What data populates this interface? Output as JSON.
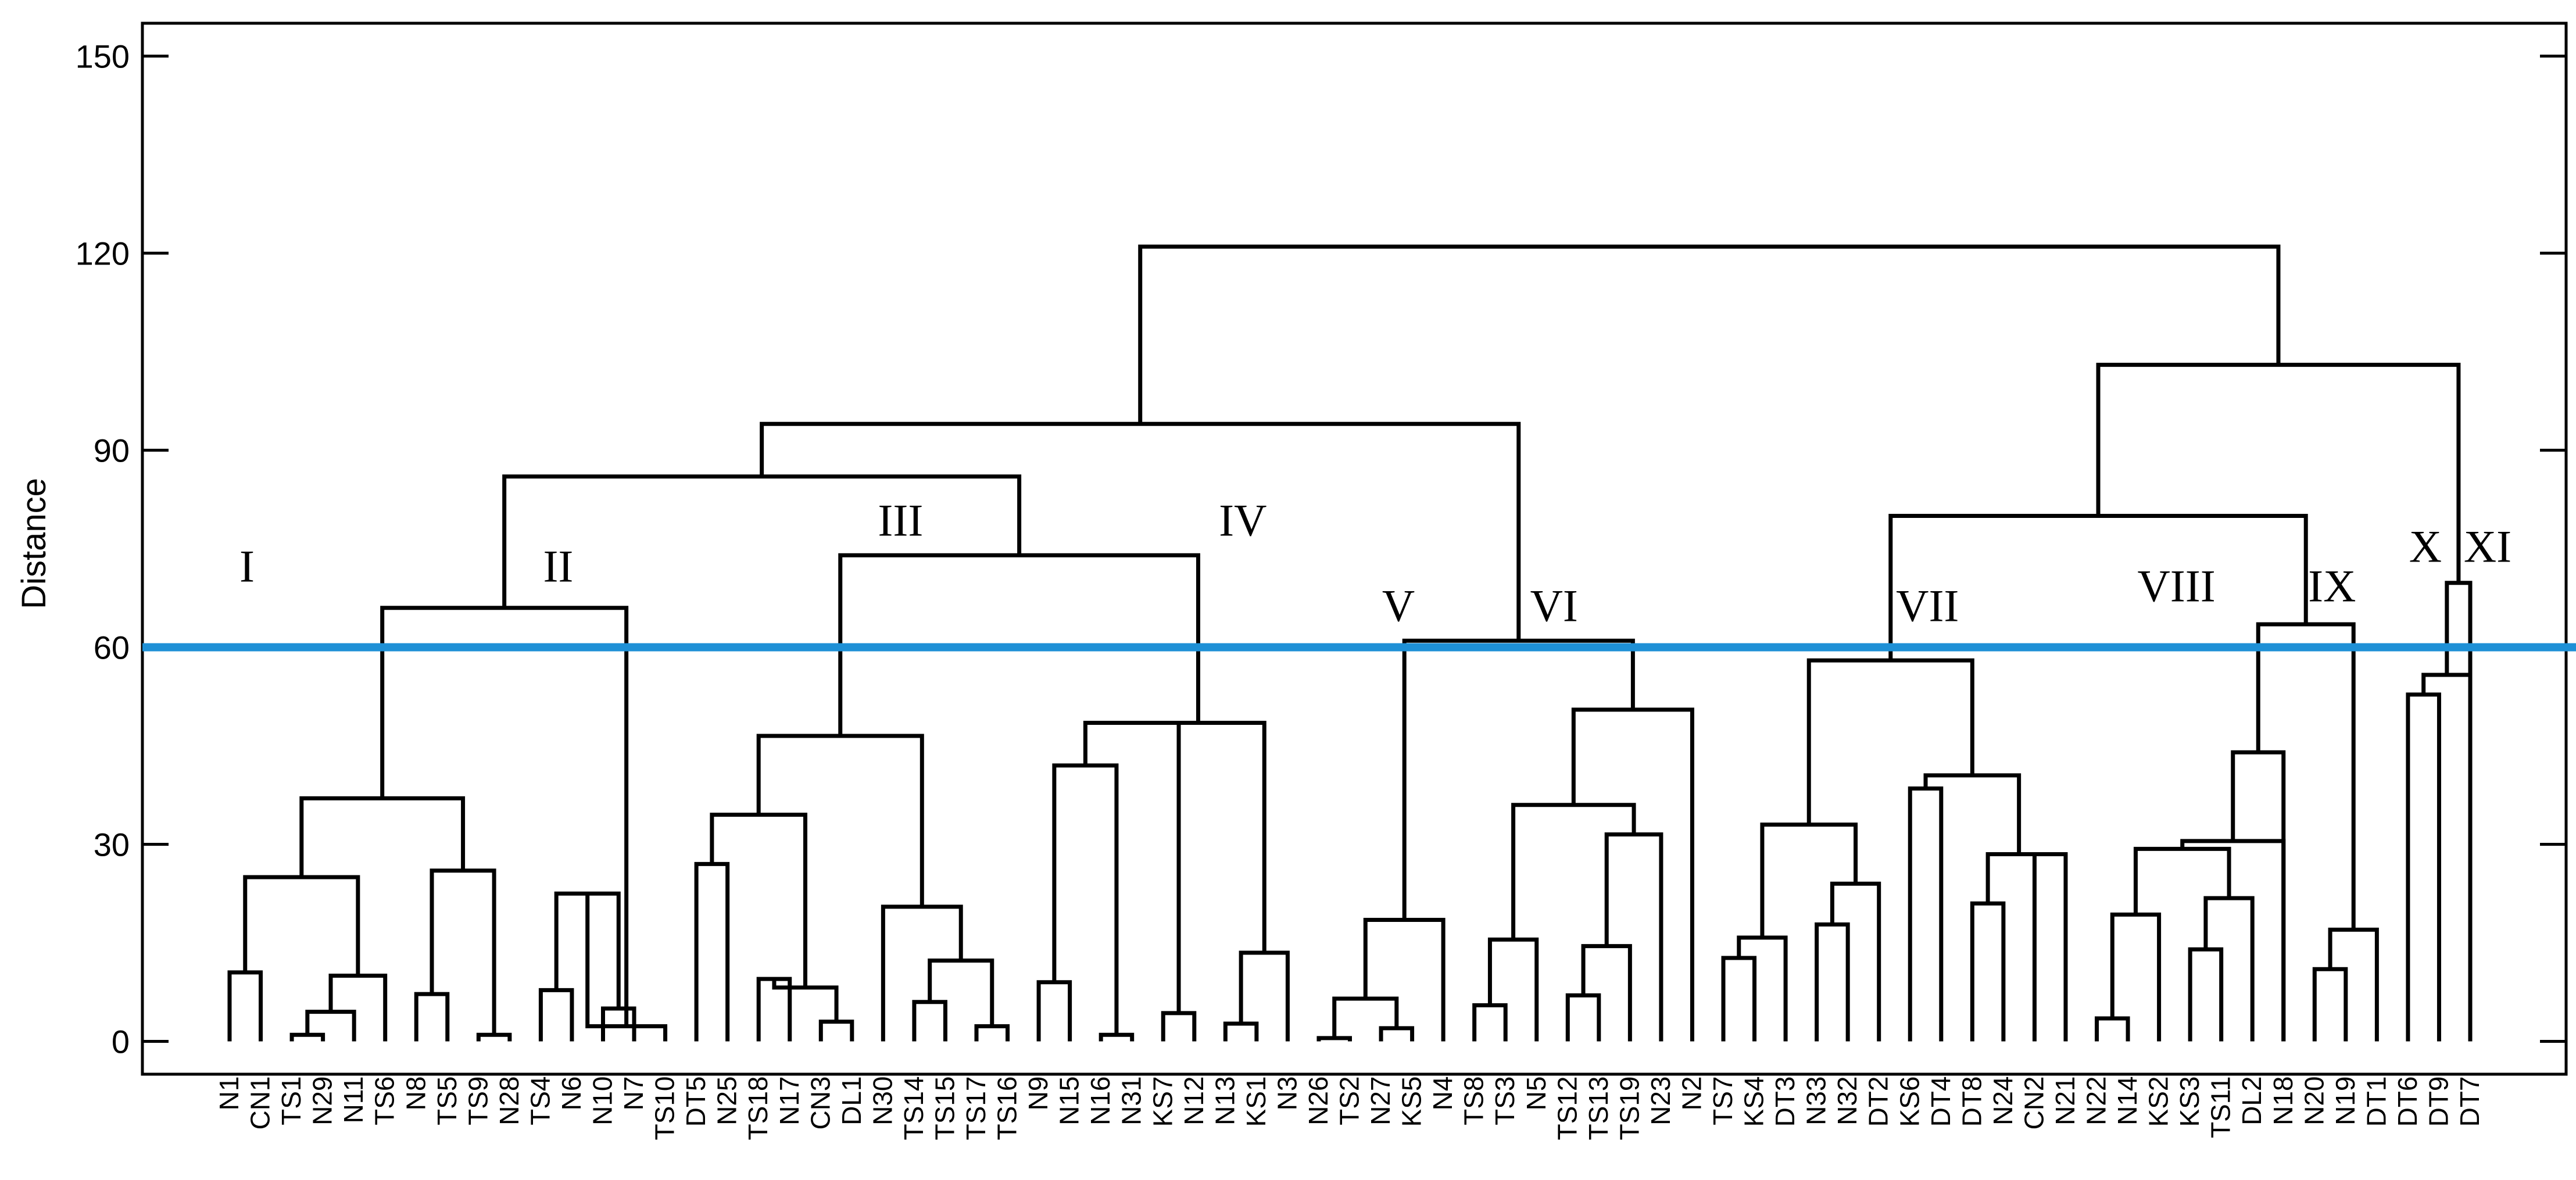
{
  "chart_data": {
    "type": "dendrogram",
    "title": "",
    "xlabel": "",
    "ylabel": "Distance",
    "ylim": [
      -5,
      155
    ],
    "yticks": [
      0,
      30,
      60,
      90,
      120,
      150
    ],
    "cutoff": 60,
    "colors": {
      "cutoff": "#1e90d6",
      "tree": "#000000",
      "frame": "#000000",
      "text": "#000000"
    },
    "leaves": [
      "N1",
      "CN1",
      "TS1",
      "N29",
      "N11",
      "TS6",
      "N8",
      "TS5",
      "TS9",
      "N28",
      "TS4",
      "N6",
      "N10",
      "N7",
      "TS10",
      "DT5",
      "N25",
      "TS18",
      "N17",
      "CN3",
      "DL1",
      "N30",
      "TS14",
      "TS15",
      "TS17",
      "TS16",
      "N9",
      "N15",
      "N16",
      "N31",
      "KS7",
      "N12",
      "N13",
      "KS1",
      "N3",
      "N26",
      "TS2",
      "N27",
      "KS5",
      "N4",
      "TS8",
      "TS3",
      "N5",
      "TS12",
      "TS13",
      "TS19",
      "N23",
      "N2",
      "TS7",
      "KS4",
      "DT3",
      "N33",
      "N32",
      "DT2",
      "KS6",
      "DT4",
      "DT8",
      "N24",
      "CN2",
      "N21",
      "N22",
      "N14",
      "KS2",
      "KS3",
      "TS11",
      "DL2",
      "N18",
      "N20",
      "N19",
      "DT1",
      "DT6",
      "DT9",
      "DT7"
    ],
    "merges": [
      {
        "id": "a1",
        "l": "N1",
        "r": "CN1",
        "h": 10.5
      },
      {
        "id": "a2",
        "l": "TS1",
        "r": "N29",
        "h": 1
      },
      {
        "id": "a3",
        "l": "a2",
        "r": "N11",
        "h": 4.5
      },
      {
        "id": "a4",
        "l": "a3",
        "r": "TS6",
        "h": 10
      },
      {
        "id": "a5",
        "l": "a1",
        "r": "a4",
        "h": 25
      },
      {
        "id": "a6",
        "l": "N8",
        "r": "TS5",
        "h": 7.2
      },
      {
        "id": "a7",
        "l": "TS9",
        "r": "N28",
        "h": 1
      },
      {
        "id": "a8",
        "l": "a6",
        "r": "a7",
        "h": 26
      },
      {
        "id": "a9",
        "l": "a5",
        "r": "a8",
        "h": 37
      },
      {
        "id": "b1",
        "l": "TS4",
        "r": "N6",
        "h": 7.8
      },
      {
        "id": "b2",
        "l": "N10",
        "r": "N7",
        "h": 5
      },
      {
        "id": "b3",
        "l": "b1",
        "r": "b2",
        "h": 22.5
      },
      {
        "id": "b4",
        "l": "b3",
        "r": "TS10",
        "h": 2.3
      },
      {
        "id": "c1",
        "l": "DT5",
        "r": "N25",
        "h": 27
      },
      {
        "id": "c2",
        "l": "TS18",
        "r": "N17",
        "h": 9.5
      },
      {
        "id": "c3",
        "l": "CN3",
        "r": "DL1",
        "h": 3
      },
      {
        "id": "c4",
        "l": "c2",
        "r": "c3",
        "h": 8.2
      },
      {
        "id": "c5",
        "l": "c1",
        "r": "c4",
        "h": 34.5
      },
      {
        "id": "c6",
        "l": "TS14",
        "r": "TS15",
        "h": 6
      },
      {
        "id": "c7",
        "l": "TS17",
        "r": "TS16",
        "h": 2.3
      },
      {
        "id": "c8",
        "l": "c6",
        "r": "c7",
        "h": 12.3
      },
      {
        "id": "c9",
        "l": "N30",
        "r": "c8",
        "h": 20.5
      },
      {
        "id": "c10",
        "l": "c5",
        "r": "c9",
        "h": 46.5
      },
      {
        "id": "d1",
        "l": "N9",
        "r": "N15",
        "h": 9
      },
      {
        "id": "d2",
        "l": "N16",
        "r": "N31",
        "h": 1
      },
      {
        "id": "d3",
        "l": "d1",
        "r": "d2",
        "h": 42
      },
      {
        "id": "d4",
        "l": "KS7",
        "r": "N12",
        "h": 4.3
      },
      {
        "id": "d5",
        "l": "d3",
        "r": "d4",
        "h": 48.5
      },
      {
        "id": "d6",
        "l": "N13",
        "r": "KS1",
        "h": 2.7
      },
      {
        "id": "d7",
        "l": "d6",
        "r": "N3",
        "h": 13.5
      },
      {
        "id": "d8",
        "l": "d5",
        "r": "d7",
        "h": 48.5
      },
      {
        "id": "d9",
        "l": "c10",
        "r": "d8",
        "h": 74
      },
      {
        "id": "e1",
        "l": "N26",
        "r": "TS2",
        "h": 0.5
      },
      {
        "id": "e2",
        "l": "N27",
        "r": "KS5",
        "h": 2
      },
      {
        "id": "e3",
        "l": "e1",
        "r": "e2",
        "h": 6.5
      },
      {
        "id": "e4",
        "l": "e3",
        "r": "N4",
        "h": 18.5
      },
      {
        "id": "f1",
        "l": "TS8",
        "r": "TS3",
        "h": 5.5
      },
      {
        "id": "f2",
        "l": "f1",
        "r": "N5",
        "h": 15.5
      },
      {
        "id": "f3",
        "l": "TS12",
        "r": "TS13",
        "h": 7
      },
      {
        "id": "f4",
        "l": "f3",
        "r": "TS19",
        "h": 14.5
      },
      {
        "id": "f5",
        "l": "f4",
        "r": "N23",
        "h": 31.5
      },
      {
        "id": "f6",
        "l": "f2",
        "r": "f5",
        "h": 36
      },
      {
        "id": "f7",
        "l": "f6",
        "r": "N2",
        "h": 50.5
      },
      {
        "id": "f8",
        "l": "e4",
        "r": "f7",
        "h": 61
      },
      {
        "id": "g1",
        "l": "TS7",
        "r": "KS4",
        "h": 12.7
      },
      {
        "id": "g2",
        "l": "DT3",
        "r": "g1",
        "h": 15.8
      },
      {
        "id": "g3",
        "l": "N33",
        "r": "N32",
        "h": 17.8
      },
      {
        "id": "g4",
        "l": "g3",
        "r": "DT2",
        "h": 24
      },
      {
        "id": "g5",
        "l": "g2",
        "r": "g4",
        "h": 33
      },
      {
        "id": "g6",
        "l": "KS6",
        "r": "DT4",
        "h": 38.5
      },
      {
        "id": "g7",
        "l": "DT8",
        "r": "N24",
        "h": 21
      },
      {
        "id": "g8",
        "l": "CN2",
        "r": "N21",
        "h": 28.5
      },
      {
        "id": "g9",
        "l": "g7",
        "r": "g8",
        "h": 28.5
      },
      {
        "id": "g10",
        "l": "g6",
        "r": "g9",
        "h": 40.5
      },
      {
        "id": "g11",
        "l": "g5",
        "r": "g10",
        "h": 58
      },
      {
        "id": "h1",
        "l": "N22",
        "r": "N14",
        "h": 3.5
      },
      {
        "id": "h2",
        "l": "h1",
        "r": "KS2",
        "h": 19.3
      },
      {
        "id": "h3",
        "l": "KS3",
        "r": "TS11",
        "h": 14
      },
      {
        "id": "h4",
        "l": "h3",
        "r": "DL2",
        "h": 21.8
      },
      {
        "id": "h5",
        "l": "h2",
        "r": "h4",
        "h": 29.3
      },
      {
        "id": "h6",
        "l": "h5",
        "r": "N18",
        "h": 30.5
      },
      {
        "id": "h7",
        "l": "h6",
        "r": "N18",
        "h": 44
      },
      {
        "id": "i1",
        "l": "N20",
        "r": "N19",
        "h": 11
      },
      {
        "id": "i2",
        "l": "i1",
        "r": "DT1",
        "h": 17
      },
      {
        "id": "i3",
        "l": "h7",
        "r": "i2",
        "h": 63.5
      },
      {
        "id": "j1",
        "l": "g11",
        "r": "i3",
        "h": 80
      },
      {
        "id": "k1",
        "l": "DT6",
        "r": "DT9",
        "h": 52.8
      },
      {
        "id": "k2",
        "l": "k1",
        "r": "DT7",
        "h": 55.8
      },
      {
        "id": "k3",
        "l": "k2",
        "r": "DT7",
        "h": 69.8
      },
      {
        "id": "l1",
        "l": "j1",
        "r": "k3",
        "h": 103
      },
      {
        "id": "m1",
        "l": "a9",
        "r": "b4",
        "h": 66
      },
      {
        "id": "m2",
        "l": "m1",
        "r": "d9",
        "h": 86
      },
      {
        "id": "m3",
        "l": "m2",
        "r": "f8",
        "h": 94
      },
      {
        "id": "root",
        "l": "m3",
        "r": "l1",
        "h": 121
      }
    ],
    "cluster_labels": [
      {
        "label": "I",
        "leaf_from": "N1",
        "leaf_to": "N1",
        "y": 70
      },
      {
        "label": "II",
        "leaf_from": "TS4",
        "leaf_to": "TS4",
        "y": 70
      },
      {
        "label": "III",
        "leaf_from": "N30",
        "leaf_to": "N30",
        "y": 77
      },
      {
        "label": "IV",
        "leaf_from": "N13",
        "leaf_to": "N13",
        "y": 77
      },
      {
        "label": "V",
        "leaf_from": "N27",
        "leaf_to": "N27",
        "y": 64
      },
      {
        "label": "VI",
        "leaf_from": "N5",
        "leaf_to": "N5",
        "y": 64
      },
      {
        "label": "VII",
        "leaf_from": "KS6",
        "leaf_to": "KS6",
        "y": 64
      },
      {
        "label": "VIII",
        "leaf_from": "KS2",
        "leaf_to": "KS2",
        "y": 67
      },
      {
        "label": "IX",
        "leaf_from": "N20",
        "leaf_to": "N20",
        "y": 67
      },
      {
        "label": "X",
        "leaf_from": "DT6",
        "leaf_to": "DT6",
        "y": 73
      },
      {
        "label": "XI",
        "leaf_from": "DT7",
        "leaf_to": "DT7",
        "y": 73
      }
    ]
  }
}
